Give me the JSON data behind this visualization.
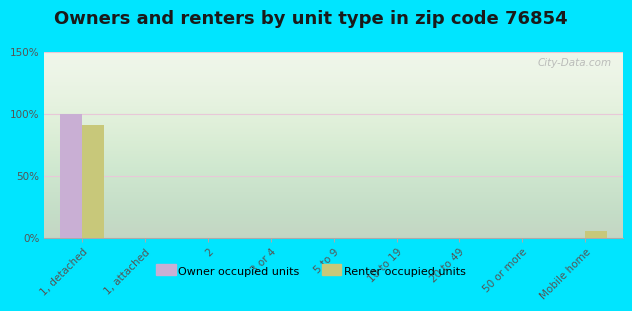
{
  "title": "Owners and renters by unit type in zip code 76854",
  "categories": [
    "1, detached",
    "1, attached",
    "2",
    "3 or 4",
    "5 to 9",
    "10 to 19",
    "20 to 49",
    "50 or more",
    "Mobile home"
  ],
  "owner_values": [
    100,
    0,
    0,
    0,
    0,
    0,
    0,
    0,
    0
  ],
  "renter_values": [
    91,
    0,
    0,
    0,
    0,
    0,
    0,
    0,
    5
  ],
  "owner_color": "#c9afd4",
  "renter_color": "#c8c87a",
  "background_outer": "#00e5ff",
  "background_plot": "#eef5e8",
  "ylim": [
    0,
    150
  ],
  "yticks": [
    0,
    50,
    100,
    150
  ],
  "ytick_labels": [
    "0%",
    "50%",
    "100%",
    "150%"
  ],
  "bar_width": 0.35,
  "watermark": "City-Data.com",
  "legend_owner": "Owner occupied units",
  "legend_renter": "Renter occupied units",
  "title_fontsize": 13,
  "tick_fontsize": 7.5,
  "grid_color": "#ddbbcc"
}
